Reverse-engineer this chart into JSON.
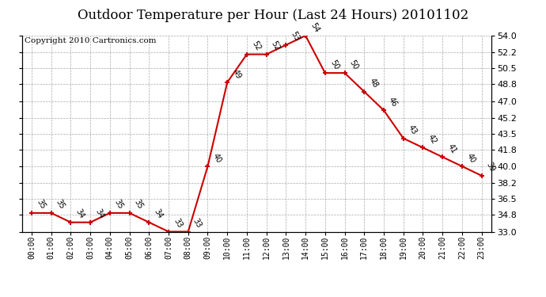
{
  "title": "Outdoor Temperature per Hour (Last 24 Hours) 20101102",
  "copyright": "Copyright 2010 Cartronics.com",
  "hours": [
    "00:00",
    "01:00",
    "02:00",
    "03:00",
    "04:00",
    "05:00",
    "06:00",
    "07:00",
    "08:00",
    "09:00",
    "10:00",
    "11:00",
    "12:00",
    "13:00",
    "14:00",
    "15:00",
    "16:00",
    "17:00",
    "18:00",
    "19:00",
    "20:00",
    "21:00",
    "22:00",
    "23:00"
  ],
  "temperatures": [
    35,
    35,
    34,
    34,
    35,
    35,
    34,
    33,
    33,
    40,
    49,
    52,
    52,
    53,
    54,
    50,
    50,
    48,
    46,
    43,
    42,
    41,
    40,
    39
  ],
  "ylim": [
    33.0,
    54.0
  ],
  "yticks": [
    33.0,
    34.8,
    36.5,
    38.2,
    40.0,
    41.8,
    43.5,
    45.2,
    47.0,
    48.8,
    50.5,
    52.2,
    54.0
  ],
  "line_color": "#cc0000",
  "marker_color": "#cc0000",
  "bg_color": "#ffffff",
  "grid_color": "#aaaaaa",
  "title_fontsize": 12,
  "copyright_fontsize": 7.5,
  "label_fontsize": 7
}
